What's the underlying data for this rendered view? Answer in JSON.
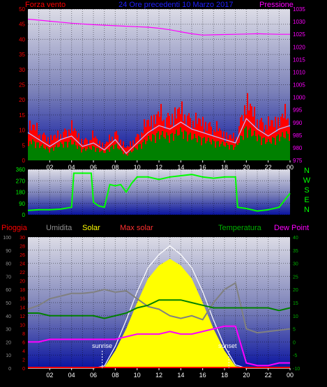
{
  "header": {
    "wind_label": "Forza vento",
    "title": "24 Ore precedenti 10 Marzo 2017",
    "pressure_label": "Pressione"
  },
  "bottom_header": {
    "rain": "Pioggia",
    "humidity": "Umidita",
    "solar": "Solar",
    "max_solar": "Max solar",
    "temperature": "Temperatura",
    "dew_point": "Dew Point"
  },
  "direction_labels": [
    "N",
    "W",
    "S",
    "E",
    "N"
  ],
  "annotations": {
    "sunrise": "sunrise",
    "sunset": "sunset"
  },
  "x_ticks": [
    "02",
    "04",
    "06",
    "08",
    "10",
    "12",
    "14",
    "16",
    "18",
    "20",
    "22",
    "00"
  ],
  "colors": {
    "wind_gust": "#ff0000",
    "wind_avg": "#008000",
    "wind_line": "#c0c0ff",
    "pressure": "#ff00ff",
    "direction": "#00ff00",
    "solar": "#ffff00",
    "humidity": "#808080",
    "temperature": "#008000",
    "dew_point": "#ff00ff",
    "rain": "#ff0000"
  },
  "chart_data": [
    {
      "type": "area",
      "title": "24 Ore precedenti 10 Marzo 2017",
      "left_axis": {
        "label": "Forza vento",
        "ylim": [
          0,
          50
        ],
        "ticks": [
          "0",
          "5",
          "10",
          "15",
          "20",
          "25",
          "30",
          "35",
          "40",
          "45",
          "50"
        ]
      },
      "right_axis": {
        "label": "Pressione",
        "ylim": [
          975,
          1035
        ],
        "ticks": [
          "975",
          "980",
          "985",
          "990",
          "995",
          "1000",
          "1005",
          "1010",
          "1015",
          "1020",
          "1025",
          "1030",
          "1035"
        ]
      },
      "x_hours": [
        0,
        1,
        2,
        3,
        4,
        5,
        6,
        7,
        8,
        9,
        10,
        11,
        12,
        13,
        14,
        15,
        16,
        17,
        18,
        19,
        20,
        21,
        22,
        23,
        24
      ],
      "pressure": [
        1031,
        1030.6,
        1030.2,
        1029.8,
        1029.4,
        1029.1,
        1028.8,
        1028.6,
        1028.4,
        1028.2,
        1028.0,
        1027.8,
        1027.4,
        1026.8,
        1026.0,
        1025.2,
        1024.7,
        1024.8,
        1024.9,
        1025.0,
        1025.1,
        1025.2,
        1025.1,
        1025.0,
        1025.0
      ],
      "wind_gust": [
        16,
        12,
        9,
        11,
        14,
        8,
        10,
        6,
        12,
        5,
        10,
        16,
        19,
        18,
        21,
        17,
        16,
        14,
        11,
        9,
        25,
        17,
        15,
        17,
        20
      ],
      "wind_avg": [
        8,
        6,
        4,
        6,
        7,
        4,
        5,
        3,
        6,
        2,
        5,
        8,
        10,
        9,
        11,
        9,
        8,
        7,
        6,
        5,
        12,
        9,
        7,
        9,
        10
      ]
    },
    {
      "type": "line",
      "left_axis": {
        "ylim": [
          0,
          360
        ],
        "ticks": [
          "0",
          "90",
          "180",
          "270",
          "360"
        ]
      },
      "x_hours": [
        0,
        1,
        2,
        3,
        4,
        4.2,
        5,
        5.8,
        6,
        6.5,
        7,
        7.5,
        8,
        8.5,
        9,
        9.5,
        10,
        11,
        12,
        13,
        14,
        15,
        16,
        17,
        18,
        19,
        19.2,
        20,
        21,
        22,
        23,
        24
      ],
      "direction": [
        35,
        40,
        40,
        45,
        60,
        330,
        330,
        330,
        100,
        70,
        60,
        240,
        230,
        240,
        180,
        250,
        300,
        300,
        280,
        300,
        310,
        320,
        300,
        290,
        300,
        300,
        60,
        50,
        30,
        40,
        60,
        170
      ]
    },
    {
      "type": "area",
      "left_axis_outer": {
        "label": "Umidita",
        "ylim": [
          0,
          100
        ],
        "ticks": [
          "0",
          "10",
          "20",
          "30",
          "40",
          "50",
          "60",
          "70",
          "80",
          "90",
          "100"
        ]
      },
      "left_axis_inner": {
        "label": "Pioggia",
        "ylim": [
          0,
          30
        ],
        "ticks": [
          "0",
          "2",
          "4",
          "6",
          "8",
          "10",
          "12",
          "14",
          "16",
          "18",
          "20",
          "22",
          "24",
          "26",
          "28",
          "30"
        ]
      },
      "right_axis": {
        "label": "Temperatura",
        "ylim": [
          -10,
          40
        ],
        "ticks": [
          "-10",
          "-5",
          "0",
          "5",
          "10",
          "15",
          "20",
          "25",
          "30",
          "35",
          "40"
        ]
      },
      "x_hours": [
        0,
        1,
        2,
        3,
        4,
        5,
        6,
        7,
        8,
        9,
        10,
        11,
        12,
        13,
        14,
        15,
        16,
        17,
        18,
        19,
        20,
        21,
        22,
        23,
        24
      ],
      "humidity": [
        45,
        48,
        53,
        55,
        57,
        57,
        58,
        60,
        58,
        59,
        53,
        47,
        45,
        40,
        38,
        40,
        37,
        50,
        60,
        65,
        30,
        27,
        28,
        29,
        30
      ],
      "temperature": [
        11,
        11,
        10,
        10,
        10,
        10,
        10,
        9,
        10,
        11,
        13,
        14,
        16,
        16,
        16,
        15,
        14,
        13,
        13,
        13,
        13,
        13,
        13,
        12,
        13
      ],
      "dew_point": [
        0,
        0,
        1,
        1,
        1,
        1,
        1,
        1,
        1,
        2,
        3,
        3,
        3,
        4,
        3,
        3,
        4,
        5,
        6,
        6,
        -8,
        -9,
        -9,
        -8,
        -8
      ],
      "solar": [
        0,
        0,
        0,
        0,
        0,
        0,
        0,
        5,
        80,
        180,
        300,
        410,
        470,
        500,
        470,
        410,
        300,
        180,
        80,
        10,
        0,
        0,
        0,
        0,
        0
      ],
      "max_solar": [
        0,
        0,
        0,
        0,
        0,
        0,
        0,
        10,
        100,
        220,
        350,
        460,
        520,
        560,
        520,
        460,
        350,
        220,
        100,
        15,
        0,
        0,
        0,
        0,
        0
      ],
      "solar_scale_max": 600,
      "rain": [
        0,
        0,
        0,
        0,
        0,
        0,
        0,
        0,
        0,
        0,
        0,
        0,
        0,
        0,
        0,
        0,
        0,
        0,
        0,
        0,
        0,
        0,
        0,
        0,
        0
      ]
    }
  ]
}
